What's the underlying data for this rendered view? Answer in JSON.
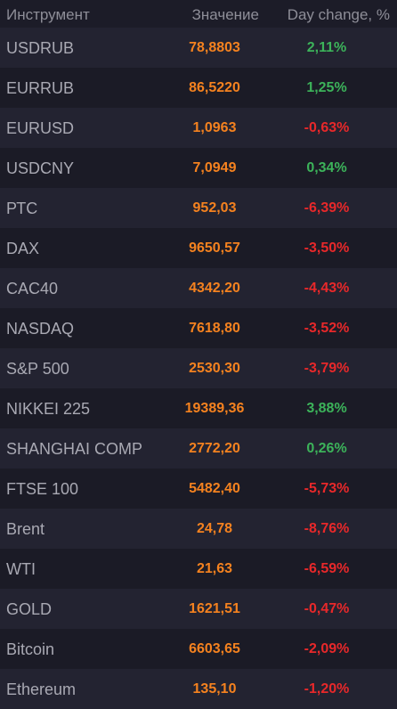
{
  "table": {
    "header": [
      "Инструмент",
      "Значение",
      "Day change, %"
    ],
    "rows": [
      [
        "USDRUB",
        "78,8803",
        "2,11%"
      ],
      [
        "EURRUB",
        "86,5220",
        "1,25%"
      ],
      [
        "EURUSD",
        "1,0963",
        "-0,63%"
      ],
      [
        "USDCNY",
        "7,0949",
        "0,34%"
      ],
      [
        "РТС",
        "952,03",
        "-6,39%"
      ],
      [
        "DAX",
        "9650,57",
        "-3,50%"
      ],
      [
        "CAC40",
        "4342,20",
        "-4,43%"
      ],
      [
        "NASDAQ",
        "7618,80",
        "-3,52%"
      ],
      [
        "S&P 500",
        "2530,30",
        "-3,79%"
      ],
      [
        "NIKKEI 225",
        "19389,36",
        "3,88%"
      ],
      [
        "SHANGHAI COMP",
        "2772,20",
        "0,26%"
      ],
      [
        "FTSE 100",
        "5482,40",
        "-5,73%"
      ],
      [
        "Brent",
        "24,78",
        "-8,76%"
      ],
      [
        "WTI",
        "21,63",
        "-6,59%"
      ],
      [
        "GOLD",
        "1621,51",
        "-0,47%"
      ],
      [
        "Bitcoin",
        "6603,65",
        "-2,09%"
      ],
      [
        "Ethereum",
        "135,10",
        "-1,20%"
      ]
    ]
  }
}
